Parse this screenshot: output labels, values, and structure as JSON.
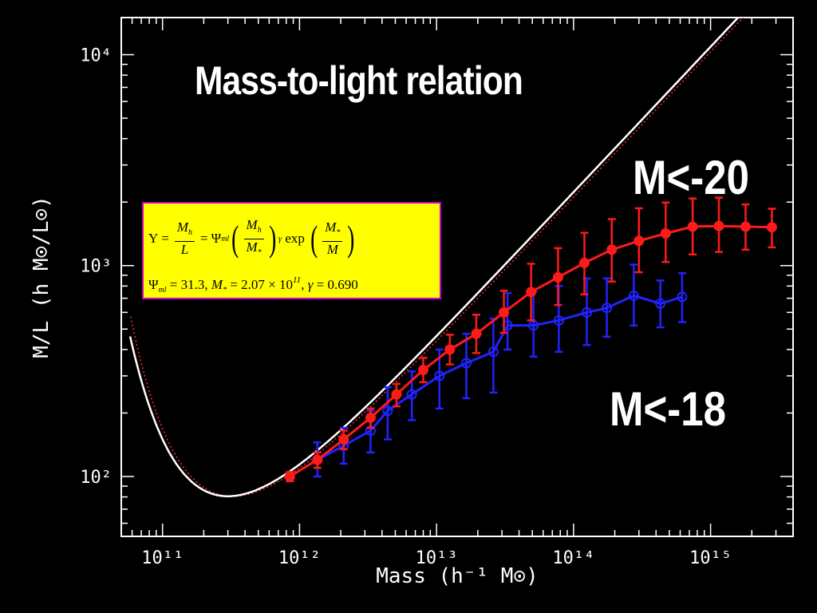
{
  "slide": {
    "title": "Mass-to-light relation",
    "series_label_bright": "M<-20",
    "series_label_faint": "M<-18"
  },
  "formula": {
    "lhs_symbol": "Υ",
    "ratio_num": "M",
    "ratio_num_sub": "h",
    "ratio_den": "L",
    "psi": "Ψ",
    "psi_sub": "ml",
    "frac1_num": "M",
    "frac1_num_sub": "h",
    "frac1_den": "M",
    "frac1_den_sub": "*",
    "gamma": "γ",
    "exp": "exp",
    "frac2_num": "M",
    "frac2_num_sub": "*",
    "frac2_den": "M",
    "params_psi_value": "= 31.3,",
    "params_mstar_value": "= 2.07 × 10",
    "params_mstar_exp": "11",
    "params_gamma_value": "= 0.690"
  },
  "chart_data": {
    "type": "line",
    "xscale": "log",
    "yscale": "log",
    "xlim": [
      50000000000.0,
      4000000000000000.0
    ],
    "ylim": [
      52,
      15000
    ],
    "xlabel": "Mass (h⁻¹ M⊙)",
    "ylabel": "M/L (h M⊙/L⊙)",
    "x_ticks": [
      {
        "value": 100000000000.0,
        "label": "10¹¹"
      },
      {
        "value": 1000000000000.0,
        "label": "10¹²"
      },
      {
        "value": 10000000000000.0,
        "label": "10¹³"
      },
      {
        "value": 100000000000000.0,
        "label": "10¹⁴"
      },
      {
        "value": 1000000000000000.0,
        "label": "10¹⁵"
      }
    ],
    "y_ticks": [
      {
        "value": 100,
        "label": "10²"
      },
      {
        "value": 1000,
        "label": "10³"
      },
      {
        "value": 10000,
        "label": "10⁴"
      }
    ],
    "colors": {
      "bright": "#ff1a1a",
      "faint": "#2222ff",
      "model": "#ffffff",
      "model_dotted": "#ff3030",
      "axes": "#ffffff"
    },
    "series": [
      {
        "id": "bright",
        "marker": "filled-circle",
        "x": [
          850000000000.0,
          1350000000000.0,
          2100000000000.0,
          3300000000000.0,
          5100000000000.0,
          8000000000000.0,
          12500000000000.0,
          19500000000000.0,
          31000000000000.0,
          49000000000000.0,
          77000000000000.0,
          120000000000000.0,
          190000000000000.0,
          300000000000000.0,
          470000000000000.0,
          740000000000000.0,
          1150000000000000.0,
          1800000000000000.0,
          2800000000000000.0
        ],
        "y": [
          100,
          120,
          150,
          190,
          245,
          320,
          400,
          475,
          600,
          750,
          880,
          1030,
          1190,
          1310,
          1420,
          1530,
          1540,
          1530,
          1520
        ],
        "err_lo": [
          5,
          10,
          15,
          20,
          30,
          40,
          60,
          90,
          120,
          200,
          230,
          300,
          350,
          380,
          380,
          400,
          380,
          340,
          300
        ],
        "err_hi": [
          5,
          10,
          15,
          20,
          30,
          45,
          70,
          110,
          160,
          270,
          330,
          400,
          470,
          560,
          570,
          550,
          560,
          420,
          340
        ]
      },
      {
        "id": "faint",
        "marker": "open-circle",
        "x": [
          1350000000000.0,
          2100000000000.0,
          3300000000000.0,
          4400000000000.0,
          6600000000000.0,
          10500000000000.0,
          16500000000000.0,
          26000000000000.0,
          33000000000000.0,
          51000000000000.0,
          78000000000000.0,
          125000000000000.0,
          175000000000000.0,
          275000000000000.0,
          430000000000000.0,
          620000000000000.0
        ],
        "y": [
          120,
          140,
          165,
          205,
          245,
          300,
          345,
          390,
          520,
          520,
          550,
          600,
          630,
          720,
          660,
          710
        ],
        "err_lo": [
          20,
          25,
          35,
          55,
          60,
          90,
          110,
          140,
          120,
          150,
          160,
          180,
          170,
          200,
          150,
          170
        ],
        "err_hi": [
          25,
          30,
          40,
          60,
          70,
          100,
          130,
          170,
          220,
          230,
          250,
          270,
          240,
          290,
          190,
          210
        ]
      }
    ],
    "model": {
      "psi_ml": 31.3,
      "m_star": 207000000000.0,
      "gamma": 0.69
    }
  }
}
